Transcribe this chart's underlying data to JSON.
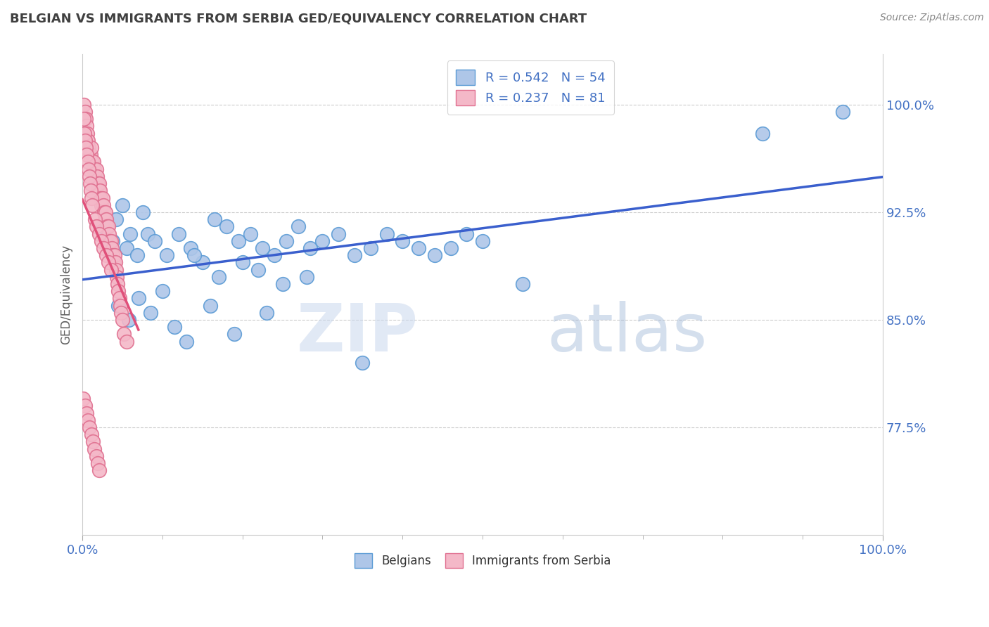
{
  "title": "BELGIAN VS IMMIGRANTS FROM SERBIA GED/EQUIVALENCY CORRELATION CHART",
  "source": "Source: ZipAtlas.com",
  "ylabel": "GED/Equivalency",
  "xlim": [
    0.0,
    100.0
  ],
  "ylim": [
    70.0,
    103.5
  ],
  "yticks": [
    77.5,
    85.0,
    92.5,
    100.0
  ],
  "ytick_labels": [
    "77.5%",
    "85.0%",
    "92.5%",
    "100.0%"
  ],
  "xtick_labels": [
    "0.0%",
    "100.0%"
  ],
  "legend_blue_label": "R = 0.542   N = 54",
  "legend_pink_label": "R = 0.237   N = 81",
  "belgians_label": "Belgians",
  "serbia_label": "Immigrants from Serbia",
  "blue_color": "#aec6e8",
  "blue_edge": "#5b9bd5",
  "pink_color": "#f4b8c8",
  "pink_edge": "#e07090",
  "blue_line_color": "#3a5fcd",
  "pink_line_color": "#e0507a",
  "title_color": "#404040",
  "source_color": "#888888",
  "tick_color": "#4472c4",
  "watermark_zip": "ZIP",
  "watermark_atlas": "atlas",
  "blue_x": [
    2.5,
    3.8,
    4.2,
    5.0,
    5.5,
    6.0,
    6.8,
    7.5,
    8.2,
    9.0,
    10.5,
    12.0,
    13.5,
    15.0,
    16.5,
    18.0,
    19.5,
    21.0,
    22.5,
    24.0,
    25.5,
    27.0,
    28.5,
    30.0,
    32.0,
    34.0,
    36.0,
    38.0,
    40.0,
    42.0,
    44.0,
    46.0,
    48.0,
    50.0,
    22.0,
    25.0,
    28.0,
    14.0,
    17.0,
    20.0,
    4.5,
    5.8,
    7.0,
    8.5,
    10.0,
    11.5,
    13.0,
    16.0,
    19.0,
    23.0,
    35.0,
    55.0,
    85.0,
    95.0
  ],
  "blue_y": [
    91.5,
    90.5,
    92.0,
    93.0,
    90.0,
    91.0,
    89.5,
    92.5,
    91.0,
    90.5,
    89.5,
    91.0,
    90.0,
    89.0,
    92.0,
    91.5,
    90.5,
    91.0,
    90.0,
    89.5,
    90.5,
    91.5,
    90.0,
    90.5,
    91.0,
    89.5,
    90.0,
    91.0,
    90.5,
    90.0,
    89.5,
    90.0,
    91.0,
    90.5,
    88.5,
    87.5,
    88.0,
    89.5,
    88.0,
    89.0,
    86.0,
    85.0,
    86.5,
    85.5,
    87.0,
    84.5,
    83.5,
    86.0,
    84.0,
    85.5,
    82.0,
    87.5,
    98.0,
    99.5
  ],
  "pink_x": [
    0.2,
    0.3,
    0.4,
    0.5,
    0.6,
    0.7,
    0.8,
    0.9,
    1.0,
    1.1,
    1.2,
    1.3,
    1.4,
    1.5,
    1.6,
    1.7,
    1.8,
    1.9,
    2.0,
    2.1,
    2.2,
    2.3,
    2.4,
    2.5,
    2.6,
    2.7,
    2.8,
    2.9,
    3.0,
    3.1,
    3.2,
    3.3,
    3.4,
    3.5,
    3.6,
    3.7,
    3.8,
    3.9,
    4.0,
    4.1,
    4.2,
    4.3,
    4.4,
    4.5,
    4.6,
    4.7,
    4.8,
    5.0,
    5.2,
    5.5,
    0.15,
    0.25,
    0.35,
    0.45,
    0.55,
    0.65,
    0.75,
    0.85,
    0.95,
    1.05,
    1.15,
    1.25,
    1.55,
    1.75,
    2.05,
    2.35,
    2.65,
    2.95,
    3.25,
    3.55,
    0.1,
    0.3,
    0.5,
    0.7,
    0.9,
    1.1,
    1.3,
    1.5,
    1.7,
    1.9,
    2.1
  ],
  "pink_y": [
    100.0,
    99.5,
    99.0,
    98.5,
    98.0,
    97.5,
    97.0,
    96.5,
    96.5,
    97.0,
    96.0,
    95.5,
    96.0,
    95.5,
    95.0,
    95.5,
    95.0,
    94.5,
    94.0,
    94.5,
    94.0,
    93.5,
    93.0,
    93.5,
    93.0,
    92.5,
    92.0,
    92.5,
    92.0,
    91.5,
    91.5,
    91.0,
    90.5,
    90.0,
    90.5,
    90.0,
    89.5,
    89.0,
    89.5,
    89.0,
    88.5,
    88.0,
    87.5,
    87.0,
    86.5,
    86.0,
    85.5,
    85.0,
    84.0,
    83.5,
    99.0,
    98.0,
    97.5,
    97.0,
    96.5,
    96.0,
    95.5,
    95.0,
    94.5,
    94.0,
    93.5,
    93.0,
    92.0,
    91.5,
    91.0,
    90.5,
    90.0,
    89.5,
    89.0,
    88.5,
    79.5,
    79.0,
    78.5,
    78.0,
    77.5,
    77.0,
    76.5,
    76.0,
    75.5,
    75.0,
    74.5
  ]
}
